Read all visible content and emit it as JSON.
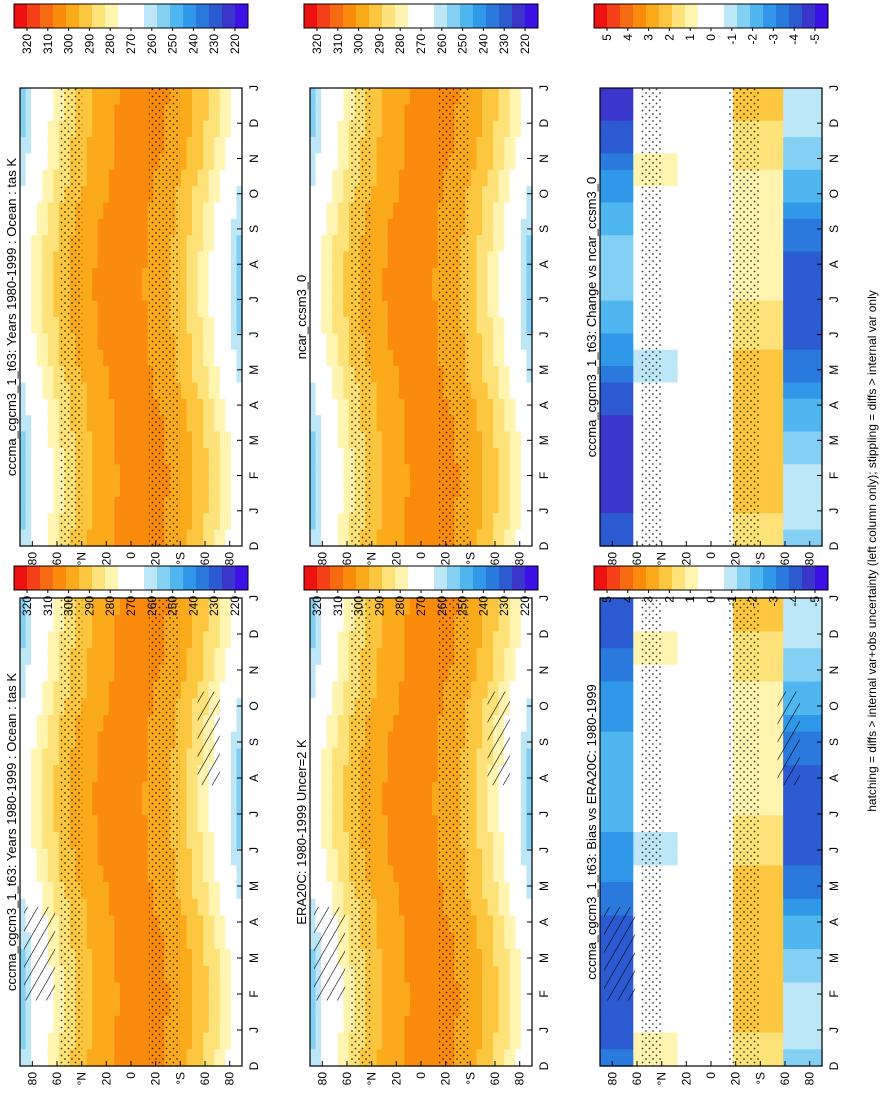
{
  "footer_note": "hatching = diffs > internal var+obs uncertainty (left column only); stippling = diffs > internal var only",
  "colorbar_abs": {
    "labels": [
      "320",
      "310",
      "300",
      "290",
      "280",
      "270",
      "260",
      "250",
      "240",
      "230",
      "220"
    ],
    "colors": [
      "#ee1111",
      "#f6401a",
      "#f86a12",
      "#fa8b0c",
      "#fbaa1c",
      "#fcc63e",
      "#fde27a",
      "#fff4b0",
      "#ffffff",
      "#ffffff",
      "#bde6f7",
      "#84d0f4",
      "#4fb6ef",
      "#2f98e8",
      "#2a79dc",
      "#2c5ad0",
      "#3a36cc",
      "#3c10e6"
    ]
  },
  "colorbar_diff": {
    "labels": [
      "5",
      "4",
      "3",
      "2",
      "1",
      "0",
      "-1",
      "-2",
      "-3",
      "-4",
      "-5"
    ],
    "colors": [
      "#ee1111",
      "#f6401a",
      "#f86a12",
      "#fa8b0c",
      "#fbaa1c",
      "#fcc63e",
      "#fde27a",
      "#fff4b0",
      "#ffffff",
      "#ffffff",
      "#bde6f7",
      "#84d0f4",
      "#4fb6ef",
      "#2f98e8",
      "#2a79dc",
      "#2c5ad0",
      "#3a36cc",
      "#3c10e6"
    ]
  },
  "chart_data": [
    {
      "type": "heatmap",
      "title": "cccma_cgcm3_1_t63: Years 1980-1999 : Ocean : tas K",
      "x_ticks": [
        "D",
        "J",
        "F",
        "M",
        "A",
        "M",
        "J",
        "J",
        "A",
        "S",
        "O",
        "N",
        "D",
        "J"
      ],
      "y_ticks": [
        "80",
        "60",
        "°N",
        "20",
        "0",
        "20",
        "°S",
        "60",
        "80"
      ],
      "ylim": [
        -90,
        90
      ],
      "variable": "tas",
      "units": "K",
      "colorbar": "colorbar_abs",
      "hatching": true,
      "stippling": true
    },
    {
      "type": "heatmap",
      "title": "cccma_cgcm3_1_t63: Years 1980-1999 : Ocean : tas K",
      "x_ticks": [
        "D",
        "J",
        "F",
        "M",
        "A",
        "M",
        "J",
        "J",
        "A",
        "S",
        "O",
        "N",
        "D",
        "J"
      ],
      "y_ticks": [
        "80",
        "60",
        "°N",
        "20",
        "0",
        "20",
        "°S",
        "60",
        "80"
      ],
      "ylim": [
        -90,
        90
      ],
      "variable": "tas",
      "units": "K",
      "colorbar": "colorbar_abs",
      "hatching": false,
      "stippling": true
    },
    {
      "type": "heatmap",
      "title": "ERA20C: 1980-1999 Uncer=2 K",
      "x_ticks": [
        "D",
        "J",
        "F",
        "M",
        "A",
        "M",
        "J",
        "J",
        "A",
        "S",
        "O",
        "N",
        "D",
        "J"
      ],
      "y_ticks": [
        "80",
        "60",
        "°N",
        "20",
        "0",
        "20",
        "°S",
        "60",
        "80"
      ],
      "ylim": [
        -90,
        90
      ],
      "colorbar": "colorbar_abs",
      "hatching": true,
      "stippling": true
    },
    {
      "type": "heatmap",
      "title": "ncar_ccsm3_0",
      "x_ticks": [
        "D",
        "J",
        "F",
        "M",
        "A",
        "M",
        "J",
        "J",
        "A",
        "S",
        "O",
        "N",
        "D",
        "J"
      ],
      "y_ticks": [
        "80",
        "60",
        "°N",
        "20",
        "0",
        "20",
        "°S",
        "60",
        "80"
      ],
      "ylim": [
        -90,
        90
      ],
      "colorbar": "colorbar_abs",
      "hatching": false,
      "stippling": true
    },
    {
      "type": "heatmap",
      "title": "cccma_cgcm3_1_t63: Bias vs ERA20C: 1980-1999",
      "x_ticks": [
        "D",
        "J",
        "F",
        "M",
        "A",
        "M",
        "J",
        "J",
        "A",
        "S",
        "O",
        "N",
        "D",
        "J"
      ],
      "y_ticks": [
        "80",
        "60",
        "°N",
        "20",
        "0",
        "20",
        "°S",
        "60",
        "80"
      ],
      "ylim": [
        -90,
        90
      ],
      "colorbar": "colorbar_diff",
      "hatching": true,
      "stippling": true
    },
    {
      "type": "heatmap",
      "title": "cccma_cgcm3_1_t63: Change vs ncar_ccsm3_0",
      "x_ticks": [
        "D",
        "J",
        "F",
        "M",
        "A",
        "M",
        "J",
        "J",
        "A",
        "S",
        "O",
        "N",
        "D",
        "J"
      ],
      "y_ticks": [
        "80",
        "60",
        "°N",
        "20",
        "0",
        "20",
        "°S",
        "60",
        "80"
      ],
      "ylim": [
        -90,
        90
      ],
      "colorbar": "colorbar_diff",
      "hatching": false,
      "stippling": true
    }
  ]
}
